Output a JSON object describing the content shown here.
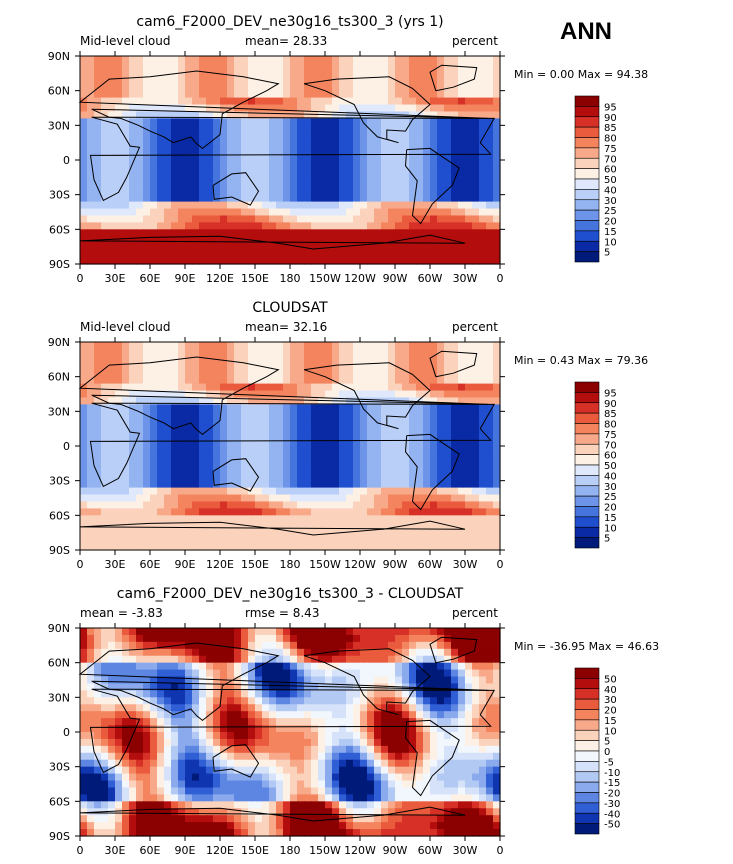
{
  "season": "ANN",
  "panels": [
    {
      "title": "cam6_F2000_DEV_ne30g16_ts300_3 (yrs 1)",
      "left_label": "Mid-level cloud",
      "center_label": "mean=  28.33",
      "right_label": "percent",
      "stats": "Min =    0.00 Max =   94.38",
      "colorbar": [
        "95",
        "90",
        "85",
        "80",
        "75",
        "70",
        "60",
        "50",
        "40",
        "30",
        "25",
        "20",
        "15",
        "10",
        "5"
      ],
      "colors": [
        "#8b0000",
        "#b30d0d",
        "#d73027",
        "#ea5a3c",
        "#f4845e",
        "#f8a98a",
        "#fbd3bd",
        "#fdf1e6",
        "#dfe9fb",
        "#b9cff7",
        "#93b3f1",
        "#6d94e8",
        "#4574dd",
        "#1f4fcf",
        "#0a2aa5",
        "#001a7a"
      ]
    },
    {
      "title": "CLOUDSAT",
      "left_label": "Mid-level cloud",
      "center_label": "mean=  32.16",
      "right_label": "percent",
      "stats": "Min =    0.43 Max =   79.36",
      "colorbar": [
        "95",
        "90",
        "85",
        "80",
        "75",
        "70",
        "60",
        "50",
        "40",
        "30",
        "25",
        "20",
        "15",
        "10",
        "5"
      ],
      "colors": [
        "#8b0000",
        "#b30d0d",
        "#d73027",
        "#ea5a3c",
        "#f4845e",
        "#f8a98a",
        "#fbd3bd",
        "#fdf1e6",
        "#dfe9fb",
        "#b9cff7",
        "#93b3f1",
        "#6d94e8",
        "#4574dd",
        "#1f4fcf",
        "#0a2aa5",
        "#001a7a"
      ]
    },
    {
      "title": "cam6_F2000_DEV_ne30g16_ts300_3 - CLOUDSAT",
      "left_label": "mean =  -3.83",
      "center_label": "rmse =   8.43",
      "right_label": "percent",
      "stats": "Min = -36.95 Max =   46.63",
      "colorbar": [
        "50",
        "40",
        "30",
        "20",
        "15",
        "10",
        "5",
        "0",
        "-5",
        "-10",
        "-15",
        "-20",
        "-30",
        "-40",
        "-50"
      ],
      "colors": [
        "#8b0000",
        "#b30d0d",
        "#d73027",
        "#ea5a3c",
        "#f4845e",
        "#f8a98a",
        "#fbd3bd",
        "#fdf1e6",
        "#f2f6fd",
        "#d5e2f9",
        "#b2c9f4",
        "#8aaaed",
        "#5c86e2",
        "#2f5ed5",
        "#0f35b0",
        "#001a7a"
      ]
    }
  ],
  "x_ticks": [
    "0",
    "30E",
    "60E",
    "90E",
    "120E",
    "150E",
    "180",
    "150W",
    "120W",
    "90W",
    "60W",
    "30W",
    "0"
  ],
  "y_ticks": [
    "90N",
    "60N",
    "30N",
    "0",
    "30S",
    "60S",
    "90S"
  ]
}
